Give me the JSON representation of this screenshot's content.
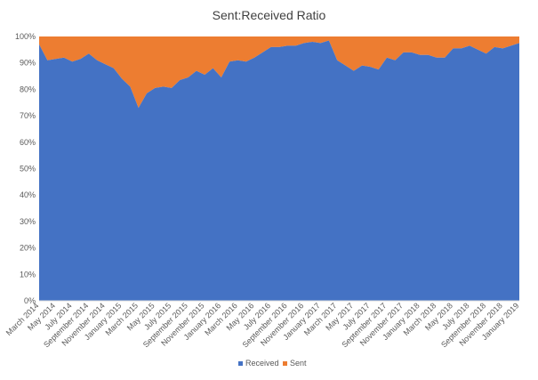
{
  "chart_data": {
    "type": "area",
    "stacked": "percent",
    "title": "Sent:Received Ratio",
    "xlabel": "",
    "ylabel": "",
    "ylim": [
      0,
      100
    ],
    "y_ticks": [
      "0%",
      "10%",
      "20%",
      "30%",
      "40%",
      "50%",
      "60%",
      "70%",
      "80%",
      "90%",
      "100%"
    ],
    "x": [
      "March 2014",
      "April 2014",
      "May 2014",
      "June 2014",
      "July 2014",
      "August 2014",
      "September 2014",
      "October 2014",
      "November 2014",
      "December 2014",
      "January 2015",
      "February 2015",
      "March 2015",
      "April 2015",
      "May 2015",
      "June 2015",
      "July 2015",
      "August 2015",
      "September 2015",
      "October 2015",
      "November 2015",
      "December 2015",
      "January 2016",
      "February 2016",
      "March 2016",
      "April 2016",
      "May 2016",
      "June 2016",
      "July 2016",
      "August 2016",
      "September 2016",
      "October 2016",
      "November 2016",
      "December 2016",
      "January 2017",
      "February 2017",
      "March 2017",
      "April 2017",
      "May 2017",
      "June 2017",
      "July 2017",
      "August 2017",
      "September 2017",
      "October 2017",
      "November 2017",
      "December 2017",
      "January 2018",
      "February 2018",
      "March 2018",
      "April 2018",
      "May 2018",
      "June 2018",
      "July 2018",
      "August 2018",
      "September 2018",
      "October 2018",
      "November 2018",
      "December 2018",
      "January 2019"
    ],
    "x_tick_labels": [
      "March 2014",
      "May 2014",
      "July 2014",
      "September 2014",
      "November 2014",
      "January 2015",
      "March 2015",
      "May 2015",
      "July 2015",
      "September 2015",
      "November 2015",
      "January 2016",
      "March 2016",
      "May 2016",
      "July 2016",
      "September 2016",
      "November 2016",
      "January 2017",
      "March 2017",
      "May 2017",
      "July 2017",
      "September 2017",
      "November 2017",
      "January 2018",
      "March 2018",
      "May 2018",
      "July 2018",
      "September 2018",
      "November 2018",
      "January 2019"
    ],
    "series": [
      {
        "name": "Received",
        "color": "#4472C4",
        "values": [
          97,
          91,
          91.5,
          92,
          90.5,
          91.5,
          93.5,
          91,
          89.5,
          88,
          84,
          81,
          73,
          78.5,
          80.5,
          81,
          80.5,
          83.5,
          84.5,
          87,
          85.5,
          88,
          84.5,
          90.5,
          91,
          90.5,
          92,
          94,
          96,
          96,
          96.5,
          96.5,
          97.5,
          98,
          97.5,
          98.5,
          91,
          89,
          87,
          89,
          88.5,
          87.5,
          92,
          91,
          94,
          94,
          93,
          93,
          92,
          92,
          95.5,
          95.5,
          96.5,
          95,
          93.5,
          96,
          95.5,
          96.5,
          97.5
        ]
      },
      {
        "name": "Sent",
        "color": "#ED7D31",
        "values": [
          3,
          9,
          8.5,
          8,
          9.5,
          8.5,
          6.5,
          9,
          10.5,
          12,
          16,
          19,
          27,
          21.5,
          19.5,
          19,
          19.5,
          16.5,
          15.5,
          13,
          14.5,
          12,
          15.5,
          9.5,
          9,
          9.5,
          8,
          6,
          4,
          4,
          3.5,
          3.5,
          2.5,
          2,
          2.5,
          1.5,
          9,
          11,
          13,
          11,
          11.5,
          12.5,
          8,
          9,
          6,
          6,
          7,
          7,
          8,
          8,
          4.5,
          4.5,
          3.5,
          5,
          6.5,
          4,
          4.5,
          3.5,
          2.5
        ]
      }
    ],
    "legend": {
      "position": "bottom",
      "entries": [
        "Received",
        "Sent"
      ]
    }
  }
}
